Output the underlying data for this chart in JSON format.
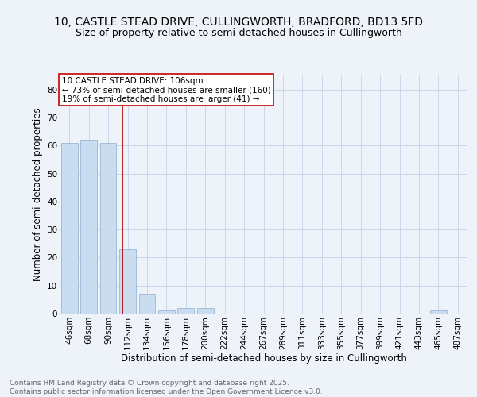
{
  "title_line1": "10, CASTLE STEAD DRIVE, CULLINGWORTH, BRADFORD, BD13 5FD",
  "title_line2": "Size of property relative to semi-detached houses in Cullingworth",
  "xlabel": "Distribution of semi-detached houses by size in Cullingworth",
  "ylabel": "Number of semi-detached properties",
  "bar_labels": [
    "46sqm",
    "68sqm",
    "90sqm",
    "112sqm",
    "134sqm",
    "156sqm",
    "178sqm",
    "200sqm",
    "222sqm",
    "244sqm",
    "267sqm",
    "289sqm",
    "311sqm",
    "333sqm",
    "355sqm",
    "377sqm",
    "399sqm",
    "421sqm",
    "443sqm",
    "465sqm",
    "487sqm"
  ],
  "bar_values": [
    61,
    62,
    61,
    23,
    7,
    1,
    2,
    2,
    0,
    0,
    0,
    0,
    0,
    0,
    0,
    0,
    0,
    0,
    0,
    1,
    0
  ],
  "bar_color": "#c9dcf0",
  "bar_edge_color": "#9ab8d8",
  "grid_color": "#c8d8ea",
  "background_color": "#eef3fa",
  "annotation_box_text": "10 CASTLE STEAD DRIVE: 106sqm\n← 73% of semi-detached houses are smaller (160)\n19% of semi-detached houses are larger (41) →",
  "annotation_box_color": "#ffffff",
  "annotation_box_edge_color": "#cc0000",
  "vline_color": "#aa0000",
  "ylim": [
    0,
    85
  ],
  "yticks": [
    0,
    10,
    20,
    30,
    40,
    50,
    60,
    70,
    80
  ],
  "footer_text": "Contains HM Land Registry data © Crown copyright and database right 2025.\nContains public sector information licensed under the Open Government Licence v3.0.",
  "title_fontsize": 10,
  "subtitle_fontsize": 9,
  "axis_label_fontsize": 8.5,
  "tick_fontsize": 7.5,
  "annotation_fontsize": 7.5,
  "footer_fontsize": 6.5
}
